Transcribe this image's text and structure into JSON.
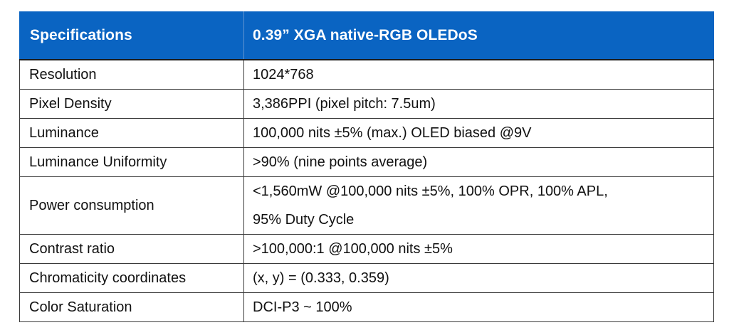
{
  "table": {
    "header": {
      "col1": "Specifications",
      "col2": "0.39”  XGA native-RGB OLEDoS"
    },
    "rows": [
      {
        "label": "Resolution",
        "value": "1024*768"
      },
      {
        "label": "Pixel Density",
        "value": "3,386PPI (pixel pitch: 7.5um)"
      },
      {
        "label": "Luminance",
        "value": "100,000 nits ±5% (max.) OLED biased @9V"
      },
      {
        "label": "Luminance Uniformity",
        "value": ">90% (nine points average)"
      },
      {
        "label": "Power consumption",
        "value_line1": "<1,560mW @100,000 nits ±5%, 100% OPR, 100% APL,",
        "value_line2": "95% Duty Cycle"
      },
      {
        "label": "Contrast ratio",
        "value": ">100,000:1 @100,000 nits ±5%"
      },
      {
        "label": "Chromaticity coordinates",
        "value": "(x, y) = (0.333, 0.359)"
      },
      {
        "label": "Color Saturation",
        "value": "DCI-P3 ~ 100%"
      }
    ],
    "header_color": "#0a64c2"
  }
}
